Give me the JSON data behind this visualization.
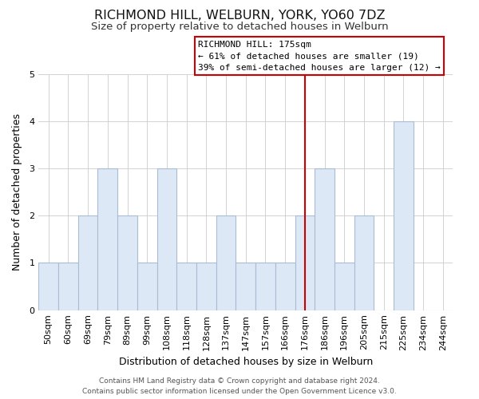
{
  "title": "RICHMOND HILL, WELBURN, YORK, YO60 7DZ",
  "subtitle": "Size of property relative to detached houses in Welburn",
  "xlabel": "Distribution of detached houses by size in Welburn",
  "ylabel": "Number of detached properties",
  "bar_fill_color": "#dce8f5",
  "bar_edge_color": "#aabcd4",
  "categories": [
    "50sqm",
    "60sqm",
    "69sqm",
    "79sqm",
    "89sqm",
    "99sqm",
    "108sqm",
    "118sqm",
    "128sqm",
    "137sqm",
    "147sqm",
    "157sqm",
    "166sqm",
    "176sqm",
    "186sqm",
    "196sqm",
    "205sqm",
    "215sqm",
    "225sqm",
    "234sqm",
    "244sqm"
  ],
  "values": [
    1,
    1,
    2,
    3,
    2,
    1,
    3,
    1,
    1,
    2,
    1,
    1,
    1,
    2,
    3,
    1,
    2,
    0,
    4,
    0,
    0
  ],
  "ylim": [
    0,
    5
  ],
  "yticks": [
    0,
    1,
    2,
    3,
    4,
    5
  ],
  "vline_index": 13,
  "vline_color": "#cc0000",
  "annotation_title": "RICHMOND HILL: 175sqm",
  "annotation_line1": "← 61% of detached houses are smaller (19)",
  "annotation_line2": "39% of semi-detached houses are larger (12) →",
  "footer1": "Contains HM Land Registry data © Crown copyright and database right 2024.",
  "footer2": "Contains public sector information licensed under the Open Government Licence v3.0.",
  "background_color": "#ffffff",
  "title_fontsize": 11.5,
  "subtitle_fontsize": 9.5,
  "xlabel_fontsize": 9,
  "ylabel_fontsize": 9,
  "tick_fontsize": 8,
  "annotation_fontsize": 8,
  "footer_fontsize": 6.5
}
